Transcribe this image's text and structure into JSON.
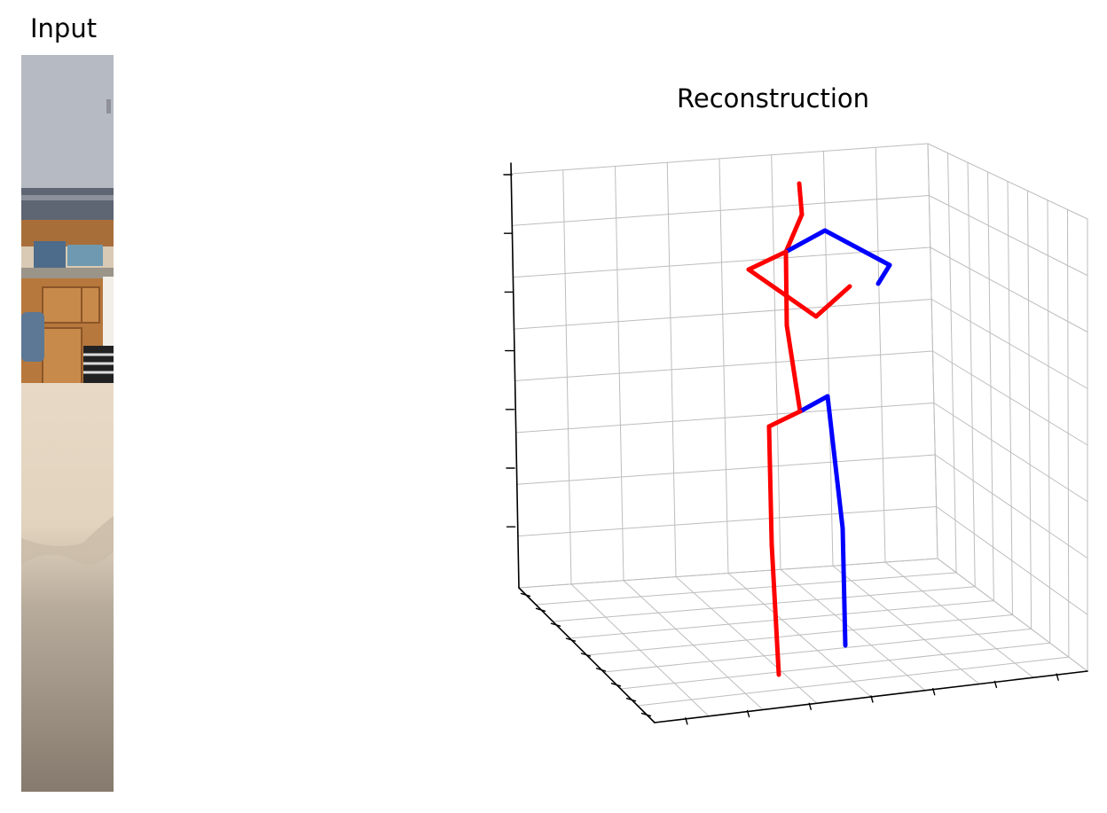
{
  "figure": {
    "input_title": "Input",
    "reconstruction_title": "Reconstruction"
  },
  "input_image": {
    "description_colors": {
      "wall": "#b8bcc4",
      "cabinet": "#b5773e",
      "carpet_light": "#e4d6c2",
      "carpet_dark": "#8d8172"
    }
  },
  "colors": {
    "left_limbs": "#ff0000",
    "right_limbs": "#0000ff",
    "grid": "#bdbdbd",
    "axis": "#000000"
  },
  "chart_data": {
    "type": "3d-skeleton",
    "title": "Reconstruction",
    "grid": true,
    "tick_labels": false,
    "ticks": {
      "left_axis_count": 7,
      "bottom_depth_count": 9,
      "bottom_width_count": 7
    },
    "bones": [
      {
        "side": "left",
        "joints": [
          "head_top",
          "neck"
        ]
      },
      {
        "side": "left",
        "joints": [
          "neck",
          "thorax"
        ]
      },
      {
        "side": "right",
        "joints": [
          "thorax",
          "r_shoulder"
        ]
      },
      {
        "side": "right",
        "joints": [
          "r_shoulder",
          "r_elbow"
        ]
      },
      {
        "side": "right",
        "joints": [
          "r_elbow",
          "r_wrist"
        ]
      },
      {
        "side": "left",
        "joints": [
          "thorax",
          "l_shoulder"
        ]
      },
      {
        "side": "left",
        "joints": [
          "l_shoulder",
          "l_elbow"
        ]
      },
      {
        "side": "left",
        "joints": [
          "l_elbow",
          "l_wrist"
        ]
      },
      {
        "side": "left",
        "joints": [
          "thorax",
          "spine"
        ]
      },
      {
        "side": "left",
        "joints": [
          "spine",
          "pelvis"
        ]
      },
      {
        "side": "right",
        "joints": [
          "pelvis",
          "r_hip"
        ]
      },
      {
        "side": "right",
        "joints": [
          "r_hip",
          "r_knee"
        ]
      },
      {
        "side": "right",
        "joints": [
          "r_knee",
          "r_ankle"
        ]
      },
      {
        "side": "left",
        "joints": [
          "pelvis",
          "l_hip"
        ]
      },
      {
        "side": "left",
        "joints": [
          "l_hip",
          "l_knee"
        ]
      },
      {
        "side": "left",
        "joints": [
          "l_knee",
          "l_ankle"
        ]
      }
    ]
  }
}
